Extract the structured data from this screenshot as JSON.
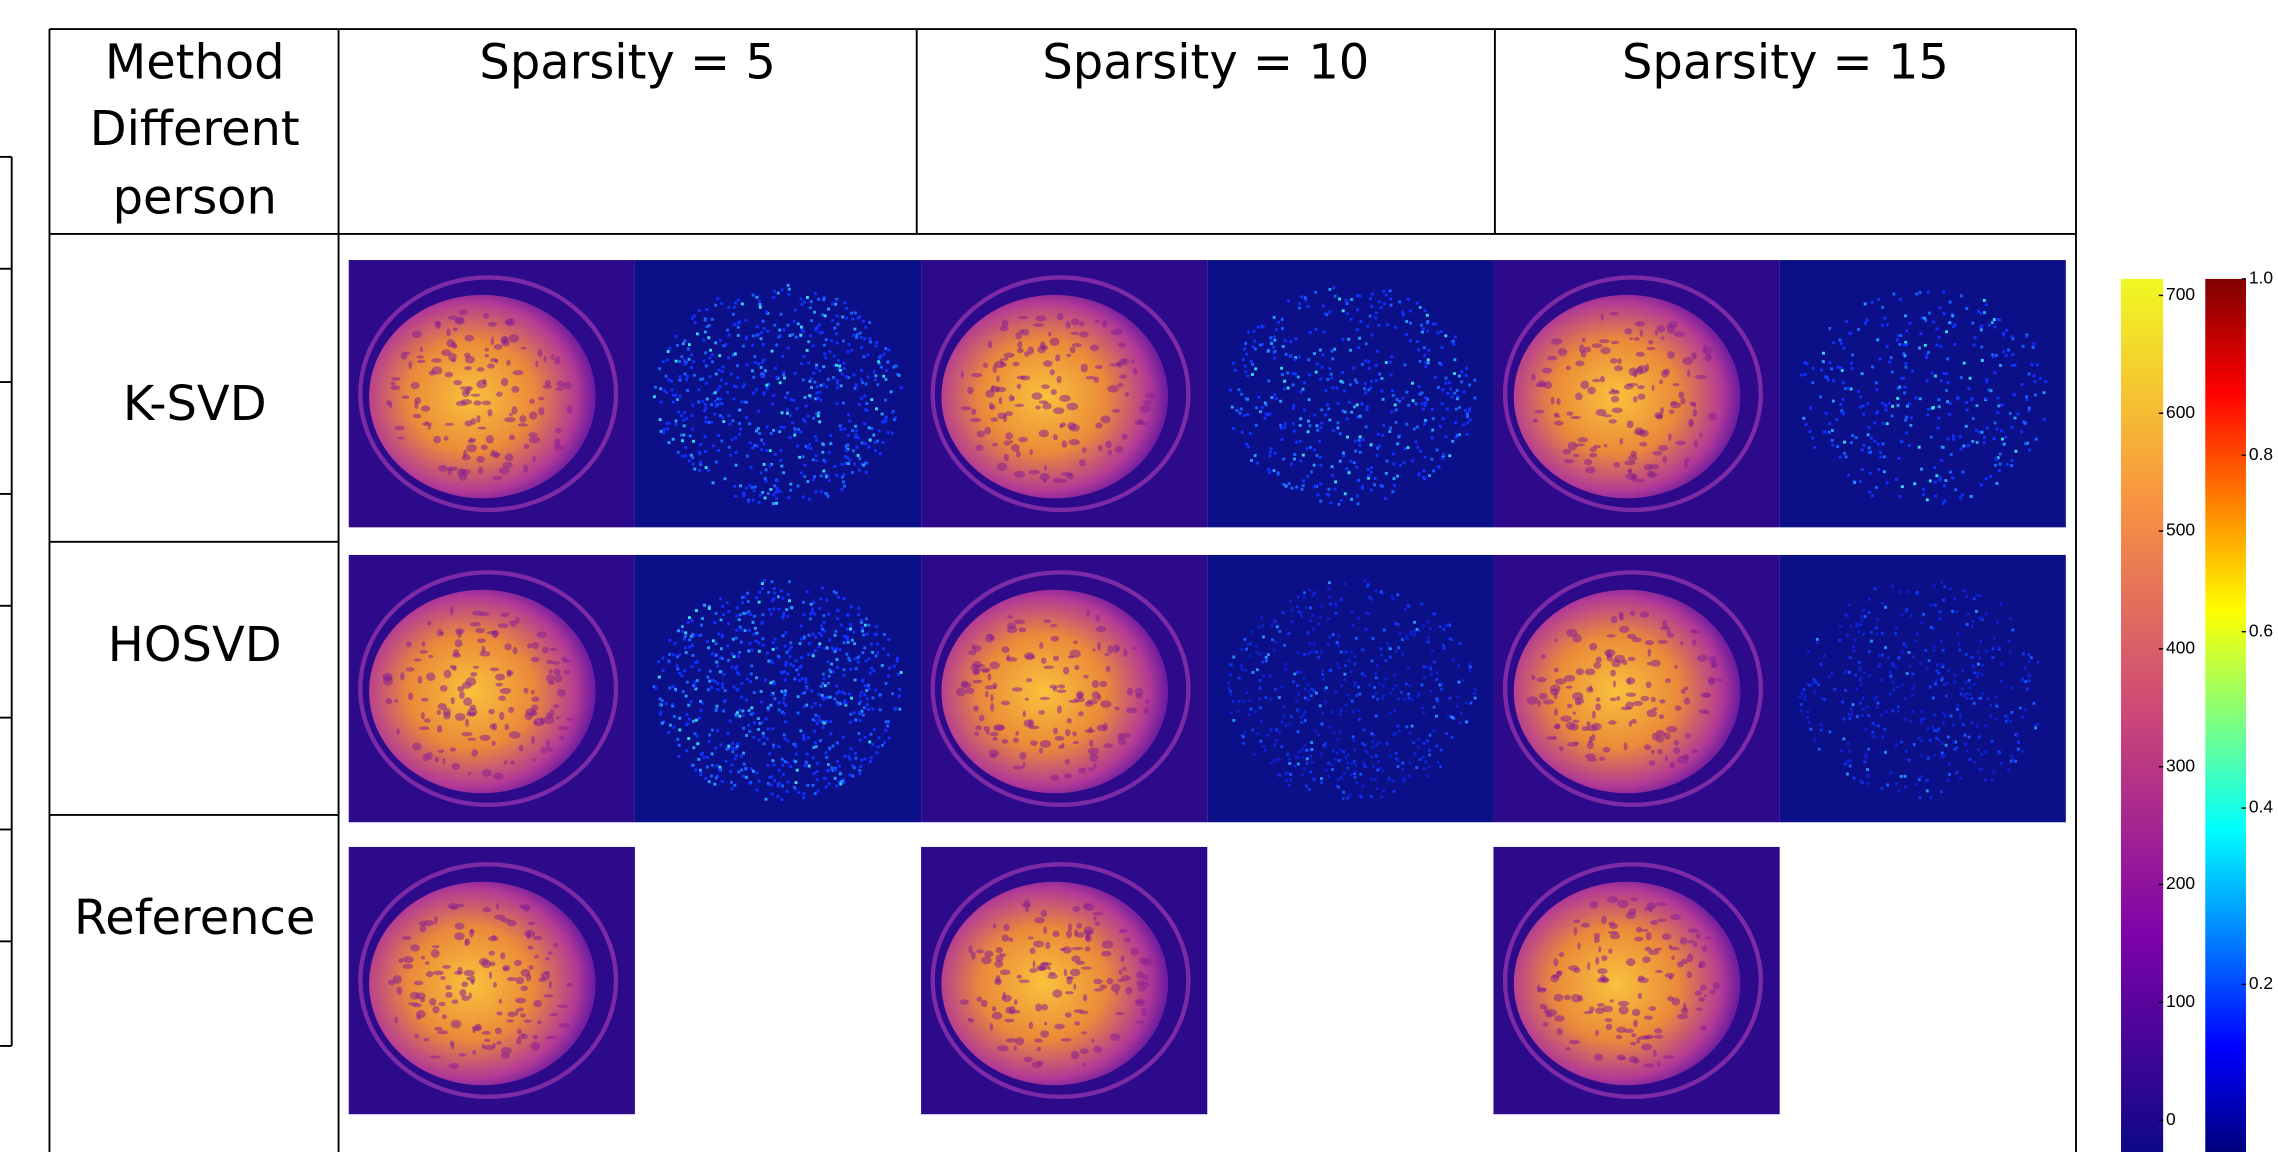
{
  "table": {
    "header": {
      "corner": [
        "Method",
        "Different",
        "person"
      ],
      "columns": [
        "Sparsity = 5",
        "Sparsity = 10",
        "Sparsity = 15"
      ]
    },
    "rows": [
      "K-SVD",
      "HOSVD",
      "Reference"
    ]
  },
  "colorbars": [
    {
      "lim": [
        -27,
        714
      ],
      "ticks": [
        0,
        100,
        200,
        300,
        400,
        500,
        600,
        700
      ]
    },
    {
      "lim": [
        0.01,
        1.0
      ],
      "ticks": [
        0.2,
        0.4,
        0.6,
        0.8,
        {
          "value": 1,
          "label": "1.0"
        }
      ]
    }
  ]
}
